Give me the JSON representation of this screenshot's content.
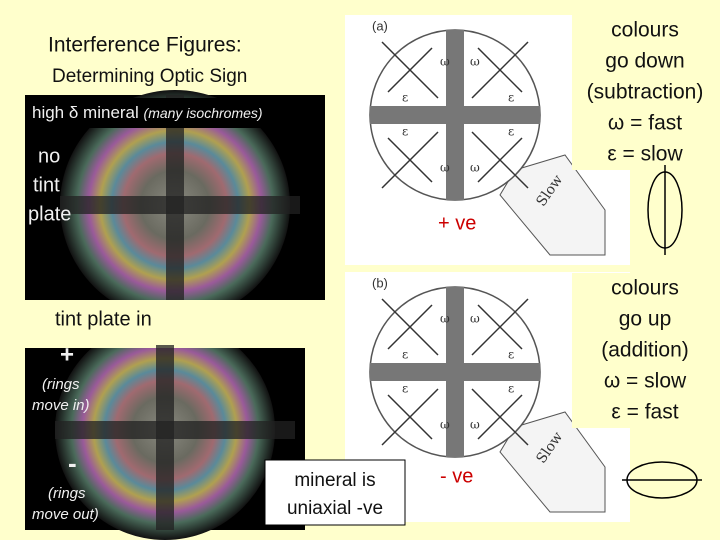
{
  "title": "Interference Figures:",
  "subtitle": "Determining Optic Sign",
  "top_photo": {
    "caption_main": "high δ mineral",
    "caption_note": "(many isochromes)",
    "label_lines": [
      "no",
      "tint",
      "plate"
    ]
  },
  "bottom_photo": {
    "caption": "tint  plate in",
    "plus": "+",
    "plus_note_lines": [
      "(rings",
      "move in)"
    ],
    "minus": "-",
    "minus_note_lines": [
      "(rings",
      "move out)"
    ]
  },
  "conclusion_lines": [
    "mineral is",
    "uniaxial -ve"
  ],
  "diagram_a": {
    "label": "(a)",
    "sign": "+ ve",
    "slow": "Slow",
    "note_lines": [
      "colours",
      "go down",
      "(subtraction)",
      "ω = fast",
      "ε = slow"
    ]
  },
  "diagram_b": {
    "label": "(b)",
    "sign": "- ve",
    "slow": "Slow",
    "note_lines": [
      "colours",
      "go up",
      "(addition)",
      "ω = slow",
      "ε = fast"
    ]
  },
  "diagram_symbols": {
    "omega": "ω",
    "epsilon": "ε"
  }
}
